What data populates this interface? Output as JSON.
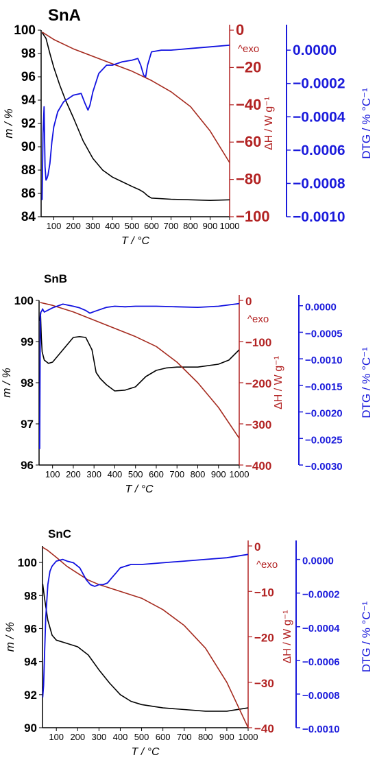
{
  "colors": {
    "mass": "#000000",
    "heat_flow": "#a52a1e",
    "heat_axis": "#b22222",
    "dtg": "#1010e0",
    "dtg_axis": "#1a1adb"
  },
  "chart_data": [
    {
      "type": "line",
      "title": "SnA",
      "xlabel": "T / °C",
      "y1label": "m / %",
      "y2label": "ΔH / W g⁻¹",
      "y3label": "DTG / % °C⁻¹",
      "annotation": "^exo",
      "xlim": [
        35,
        1000
      ],
      "y1lim": [
        84,
        100
      ],
      "y2lim": [
        -100,
        0
      ],
      "y3lim": [
        -0.001,
        0.00012
      ],
      "x_ticks": [
        100,
        200,
        300,
        400,
        500,
        600,
        700,
        800,
        900,
        1000
      ],
      "y1_ticks": [
        84,
        86,
        88,
        90,
        92,
        94,
        96,
        98,
        100
      ],
      "y2_ticks": [
        0,
        -20,
        -40,
        -60,
        -80,
        -100
      ],
      "y3_ticks": [
        "0.0000",
        "-0.0002",
        "-0.0004",
        "-0.0006",
        "-0.0008",
        "-0.0010"
      ],
      "grid": false,
      "series": [
        {
          "name": "m / %",
          "axis": "y1",
          "x": [
            40,
            60,
            80,
            100,
            130,
            160,
            200,
            250,
            300,
            350,
            400,
            450,
            500,
            540,
            560,
            580,
            600,
            700,
            800,
            900,
            1000
          ],
          "values": [
            99.8,
            99.3,
            98.0,
            96.8,
            95.3,
            94.0,
            92.5,
            90.5,
            89.0,
            88.0,
            87.4,
            87.0,
            86.6,
            86.3,
            86.1,
            85.8,
            85.6,
            85.5,
            85.45,
            85.4,
            85.45
          ]
        },
        {
          "name": "ΔH / W g⁻¹",
          "axis": "y2",
          "x": [
            40,
            100,
            200,
            300,
            400,
            500,
            600,
            700,
            800,
            900,
            1000
          ],
          "values": [
            -1,
            -5,
            -10,
            -14,
            -18,
            -22,
            -27,
            -33,
            -41,
            -54,
            -71
          ]
        },
        {
          "name": "DTG / % °C⁻¹",
          "axis": "y3",
          "x": [
            40,
            45,
            50,
            55,
            60,
            65,
            70,
            80,
            90,
            100,
            120,
            150,
            200,
            240,
            260,
            275,
            285,
            300,
            330,
            370,
            400,
            450,
            500,
            530,
            545,
            560,
            570,
            580,
            600,
            650,
            700,
            800,
            900,
            1000
          ],
          "values": [
            -0.0009,
            -0.0005,
            -0.00034,
            -0.0007,
            -0.00078,
            -0.00077,
            -0.00075,
            -0.00068,
            -0.00055,
            -0.00046,
            -0.00037,
            -0.00031,
            -0.00027,
            -0.00026,
            -0.00032,
            -0.00036,
            -0.00033,
            -0.00025,
            -0.00014,
            -9e-05,
            -9e-05,
            -7e-05,
            -6e-05,
            -5e-05,
            -9e-05,
            -0.00015,
            -0.00016,
            -9e-05,
            -1e-05,
            0.0,
            0.0,
            1e-05,
            2e-05,
            3e-05
          ]
        }
      ]
    },
    {
      "type": "line",
      "title": "SnB",
      "xlabel": "T / °C",
      "y1label": "m / %",
      "y2label": "ΔH / W g⁻¹",
      "y3label": "DTG / % °C⁻¹",
      "annotation": "^exo",
      "xlim": [
        35,
        1000
      ],
      "y1lim": [
        96,
        100
      ],
      "y2lim": [
        -400,
        0
      ],
      "y3lim": [
        -0.003,
        0.0001
      ],
      "x_ticks": [
        100,
        200,
        300,
        400,
        500,
        600,
        700,
        800,
        900,
        1000
      ],
      "y1_ticks": [
        96,
        97,
        98,
        99,
        100
      ],
      "y2_ticks": [
        0,
        -100,
        -200,
        -300,
        -400
      ],
      "y3_ticks": [
        "0.0000",
        "-0.0005",
        "-0.0010",
        "-0.0015",
        "-0.0020",
        "-0.0025",
        "-0.0030"
      ],
      "grid": false,
      "series": [
        {
          "name": "m / %",
          "axis": "y1",
          "x": [
            38,
            42,
            46,
            50,
            60,
            80,
            100,
            150,
            200,
            230,
            260,
            290,
            310,
            330,
            360,
            400,
            450,
            500,
            550,
            600,
            650,
            700,
            800,
            900,
            950,
            1000
          ],
          "values": [
            99.5,
            99.7,
            99.1,
            98.75,
            98.55,
            98.47,
            98.5,
            98.8,
            99.1,
            99.12,
            99.1,
            98.8,
            98.25,
            98.1,
            97.95,
            97.8,
            97.82,
            97.9,
            98.15,
            98.3,
            98.36,
            98.38,
            98.38,
            98.45,
            98.55,
            98.8
          ]
        },
        {
          "name": "ΔH / W g⁻¹",
          "axis": "y2",
          "x": [
            40,
            100,
            200,
            300,
            400,
            500,
            600,
            700,
            800,
            900,
            1000
          ],
          "values": [
            -5,
            -12,
            -28,
            -48,
            -68,
            -88,
            -112,
            -150,
            -200,
            -260,
            -335
          ]
        },
        {
          "name": "DTG / % °C⁻¹",
          "axis": "y3",
          "x": [
            38,
            41,
            44,
            48,
            52,
            60,
            80,
            100,
            150,
            200,
            230,
            260,
            280,
            300,
            330,
            360,
            400,
            450,
            500,
            600,
            700,
            800,
            900,
            1000
          ],
          "values": [
            -0.0027,
            -0.0002,
            -0.00012,
            -0.0001,
            -6e-05,
            -0.00012,
            -8e-05,
            -4e-05,
            3e-05,
            -1e-05,
            -4e-05,
            -9e-05,
            -0.00014,
            -0.00011,
            -7e-05,
            -3e-05,
            -1e-05,
            -2e-05,
            -1e-05,
            -1e-05,
            -2e-05,
            -3e-05,
            -1e-05,
            4e-05
          ]
        }
      ]
    },
    {
      "type": "line",
      "title": "SnC",
      "xlabel": "T / °C",
      "y1label": "m / %",
      "y2label": "ΔH / W g⁻¹",
      "y3label": "DTG / % °C⁻¹",
      "annotation": "^exo",
      "xlim": [
        35,
        1000
      ],
      "y1lim": [
        90,
        101
      ],
      "y2lim": [
        -40,
        0
      ],
      "y3lim": [
        -0.001,
        8e-05
      ],
      "x_ticks": [
        100,
        200,
        300,
        400,
        500,
        600,
        700,
        800,
        900,
        1000
      ],
      "y1_ticks": [
        90,
        92,
        94,
        96,
        98,
        100
      ],
      "y2_ticks": [
        0,
        -10,
        -20,
        -30,
        -40
      ],
      "y3_ticks": [
        "0.0000",
        "-0.0002",
        "-0.0004",
        "-0.0006",
        "-0.0008",
        "-0.0010"
      ],
      "grid": false,
      "series": [
        {
          "name": "m / %",
          "axis": "y1",
          "x": [
            36,
            45,
            60,
            80,
            100,
            150,
            200,
            250,
            300,
            350,
            400,
            450,
            500,
            600,
            700,
            800,
            850,
            900,
            1000
          ],
          "values": [
            98.7,
            97.8,
            96.5,
            95.6,
            95.3,
            95.1,
            94.9,
            94.4,
            93.5,
            92.7,
            92.0,
            91.6,
            91.4,
            91.2,
            91.1,
            91.0,
            91.0,
            91.0,
            91.2
          ]
        },
        {
          "name": "ΔH / W g⁻¹",
          "axis": "y2",
          "x": [
            36,
            60,
            100,
            150,
            200,
            250,
            300,
            400,
            500,
            600,
            700,
            800,
            900,
            1000
          ],
          "values": [
            -0.3,
            -1,
            -2.5,
            -4.5,
            -6,
            -7.5,
            -8.5,
            -10,
            -11.5,
            -14,
            -17.5,
            -22.5,
            -30,
            -40
          ]
        },
        {
          "name": "DTG / % °C⁻¹",
          "axis": "y3",
          "x": [
            36,
            40,
            45,
            50,
            60,
            70,
            80,
            100,
            130,
            150,
            180,
            210,
            240,
            260,
            280,
            300,
            320,
            340,
            360,
            380,
            400,
            450,
            500,
            600,
            700,
            800,
            900,
            1000
          ],
          "values": [
            -0.00082,
            -0.00075,
            -0.00055,
            -0.00035,
            -0.00015,
            -7e-05,
            -4e-05,
            -1e-05,
            0.0,
            -1e-05,
            -2e-05,
            -5e-05,
            -0.00012,
            -0.00015,
            -0.00016,
            -0.00015,
            -0.00015,
            -0.00014,
            -0.00011,
            -8e-05,
            -5e-05,
            -3e-05,
            -3e-05,
            -2e-05,
            -1e-05,
            0.0,
            1e-05,
            3e-05
          ]
        }
      ]
    }
  ]
}
